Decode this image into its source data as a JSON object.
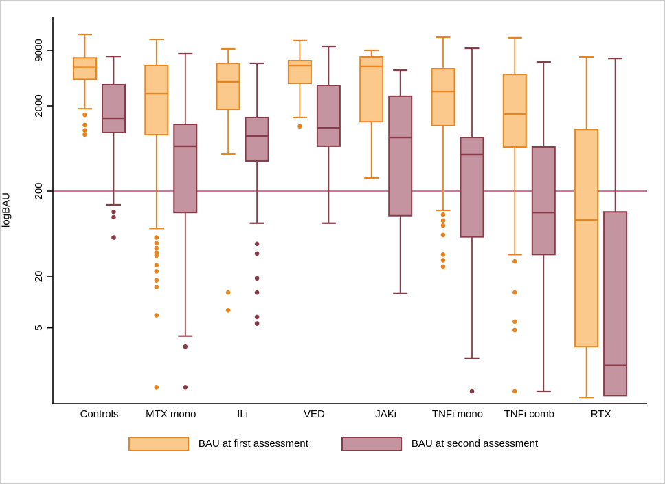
{
  "figure_title": "",
  "y_axis": {
    "label": "logBAU",
    "scale": "log",
    "ticks": [
      9000,
      2000,
      200,
      20,
      5
    ]
  },
  "reference_line_value": 200,
  "colors": {
    "first_stroke": "#e8851e",
    "first_fill": "#fbc98c",
    "second_stroke": "#8a3b49",
    "second_fill": "#c494a0",
    "reference_line": "#c9476f",
    "axis": "#000000",
    "text": "#000000"
  },
  "chart_data": {
    "type": "boxplot",
    "title": "",
    "xlabel": "",
    "ylabel": "logBAU",
    "y_scale": "log",
    "y_ticks": [
      9000,
      2000,
      200,
      20,
      5
    ],
    "y_range_approx": [
      0.65,
      22000
    ],
    "reference_line": 200,
    "grid": false,
    "legend_position": "bottom",
    "categories": [
      "Controls",
      "MTX mono",
      "ILi",
      "VED",
      "JAKi",
      "TNFi mono",
      "TNFi comb",
      "RTX"
    ],
    "series": [
      {
        "name": "BAU at first assessment",
        "stroke": "#e8851e",
        "fill": "#fbc98c",
        "boxes": [
          {
            "category": "Controls",
            "whisker_low": 1850,
            "q1": 4100,
            "median": 5700,
            "q3": 7300,
            "whisker_high": 13800,
            "outliers": [
              1570,
              1190,
              1030,
              920
            ]
          },
          {
            "category": "MTX mono",
            "whisker_low": 73,
            "q1": 915,
            "median": 2790,
            "q3": 5980,
            "whisker_high": 12100,
            "outliers": [
              57,
              49,
              43,
              38,
              35,
              27,
              23,
              18,
              15,
              7,
              1.0
            ]
          },
          {
            "category": "ILi",
            "whisker_low": 545,
            "q1": 1820,
            "median": 3830,
            "q3": 6330,
            "whisker_high": 9340,
            "outliers": [
              13,
              8
            ]
          },
          {
            "category": "VED",
            "whisker_low": 1460,
            "q1": 3690,
            "median": 5980,
            "q3": 6810,
            "whisker_high": 11700,
            "outliers": [
              1150
            ]
          },
          {
            "category": "JAKi",
            "whisker_low": 284,
            "q1": 1300,
            "median": 5770,
            "q3": 7480,
            "whisker_high": 9000,
            "outliers": []
          },
          {
            "category": "TNFi mono",
            "whisker_low": 119,
            "q1": 1170,
            "median": 2950,
            "q3": 5450,
            "whisker_high": 12800,
            "outliers": [
              106,
              90,
              79,
              61,
              36,
              31,
              26
            ]
          },
          {
            "category": "TNFi comb",
            "whisker_low": 36,
            "q1": 656,
            "median": 1600,
            "q3": 4700,
            "whisker_high": 12600,
            "outliers": [
              30,
              13,
              5.9,
              4.7,
              0.9
            ]
          },
          {
            "category": "RTX",
            "whisker_low": 0.76,
            "q1": 3.0,
            "median": 92,
            "q3": 1060,
            "whisker_high": 7480,
            "outliers": []
          }
        ]
      },
      {
        "name": "BAU at second assessment",
        "stroke": "#8a3b49",
        "fill": "#c494a0",
        "boxes": [
          {
            "category": "Controls",
            "whisker_low": 138,
            "q1": 970,
            "median": 1430,
            "q3": 3560,
            "whisker_high": 7600,
            "outliers": [
              114,
              99,
              57
            ]
          },
          {
            "category": "MTX mono",
            "whisker_low": 4.0,
            "q1": 112,
            "median": 670,
            "q3": 1210,
            "whisker_high": 8200,
            "outliers": [
              3.0,
              1.0
            ]
          },
          {
            "category": "ILi",
            "whisker_low": 84,
            "q1": 453,
            "median": 880,
            "q3": 1460,
            "whisker_high": 6330,
            "outliers": [
              48,
              37,
              19,
              13,
              6.7,
              5.6
            ]
          },
          {
            "category": "VED",
            "whisker_low": 84,
            "q1": 670,
            "median": 1100,
            "q3": 3490,
            "whisker_high": 9880,
            "outliers": []
          },
          {
            "category": "JAKi",
            "whisker_low": 12.6,
            "q1": 103,
            "median": 850,
            "q3": 2600,
            "whisker_high": 5250,
            "outliers": []
          },
          {
            "category": "TNFi mono",
            "whisker_low": 2.2,
            "q1": 58,
            "median": 535,
            "q3": 850,
            "whisker_high": 9510,
            "outliers": [
              0.9
            ]
          },
          {
            "category": "TNFi comb",
            "whisker_low": 0.9,
            "q1": 36,
            "median": 112,
            "q3": 656,
            "whisker_high": 6560,
            "outliers": []
          },
          {
            "category": "RTX",
            "whisker_low": null,
            "q1": 0.8,
            "median": 1.8,
            "q3": 114,
            "whisker_high": 7180,
            "outliers": []
          }
        ]
      }
    ]
  },
  "legend": {
    "first_label": "BAU at first assessment",
    "second_label": "BAU at second assessment"
  }
}
